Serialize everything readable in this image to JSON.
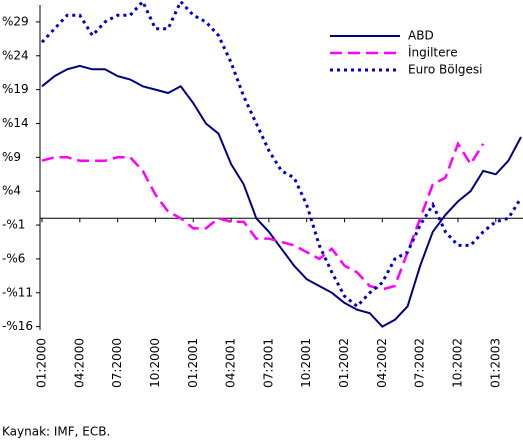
{
  "chart_data": {
    "type": "line",
    "categories": [
      "01:2000",
      null,
      null,
      "04:2000",
      null,
      null,
      "07:2000",
      null,
      null,
      "10:2000",
      null,
      null,
      "01:2001",
      null,
      null,
      "04:2001",
      null,
      null,
      "07:2001",
      null,
      null,
      "10:2001",
      null,
      null,
      "01:2002",
      null,
      null,
      "04:2002",
      null,
      null,
      "07:2002",
      null,
      null,
      "10:2002",
      null,
      null,
      "01:2003",
      null,
      null
    ],
    "series": [
      {
        "name": "ABD",
        "color": "#000080",
        "values": [
          19.5,
          21,
          22,
          22.5,
          22,
          22,
          21,
          20.5,
          19.5,
          19,
          18.5,
          19.5,
          17,
          14,
          12.5,
          8,
          5,
          0,
          -2,
          -4.5,
          -7,
          -9,
          -10,
          -11,
          -12.5,
          -13.5,
          -14,
          -16,
          -15,
          -13,
          -7,
          -2,
          0.5,
          2.5,
          4,
          7,
          6.5,
          8.5,
          12
        ]
      },
      {
        "name": "İngiltere",
        "color": "#ff00ff",
        "values": [
          8.5,
          9,
          9,
          8.5,
          8.5,
          8.5,
          9,
          9,
          7,
          3.5,
          1,
          0,
          -1.5,
          -1.5,
          0,
          -0.5,
          -0.5,
          -3,
          -3,
          -3.5,
          -4,
          -5,
          -6,
          -4.5,
          -7,
          -8,
          -10,
          -10.5,
          -10,
          -5,
          0,
          5,
          6,
          11,
          8,
          11,
          null,
          null,
          null
        ]
      },
      {
        "name": "Euro Bölgesi",
        "color": "#0000cc",
        "values": [
          26,
          28,
          30,
          30,
          27,
          29,
          30,
          30,
          32,
          28,
          28,
          32,
          30,
          29,
          27,
          23,
          18,
          14,
          10,
          7,
          6,
          2,
          -4,
          -8,
          -11.5,
          -13,
          -11,
          -9.5,
          -6,
          -5,
          -1,
          2,
          -2,
          -4,
          -4,
          -2,
          -0.5,
          0,
          3
        ]
      }
    ],
    "ylim": [
      -16.5,
      31.5
    ],
    "yticks": [
      {
        "value": 29,
        "label": "%29"
      },
      {
        "value": 24,
        "label": "%24"
      },
      {
        "value": 19,
        "label": "%19"
      },
      {
        "value": 14,
        "label": "%14"
      },
      {
        "value": 9,
        "label": "%9"
      },
      {
        "value": 4,
        "label": "%4"
      },
      {
        "value": -1,
        "label": "-%1"
      },
      {
        "value": -6,
        "label": "-%6"
      },
      {
        "value": -11,
        "label": "-%11"
      },
      {
        "value": -16,
        "label": "-%16"
      }
    ],
    "legend": "upper right",
    "source": "Kaynak: IMF, ECB."
  }
}
